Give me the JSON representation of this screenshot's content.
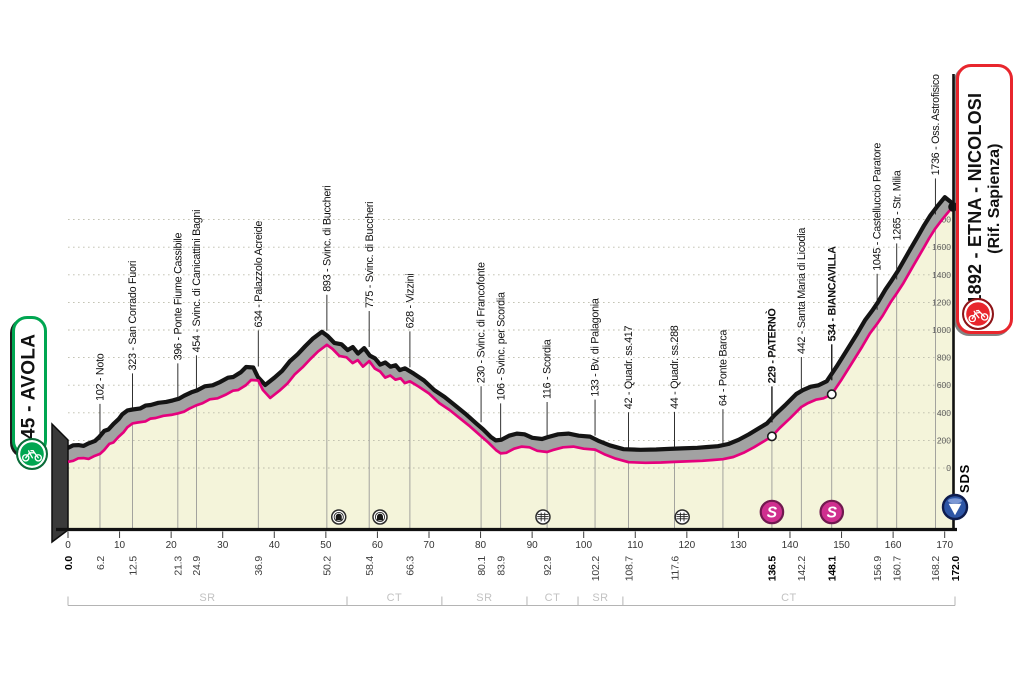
{
  "chart_data": {
    "type": "area",
    "x_unit": "km",
    "y_unit": "m",
    "xlim": [
      0,
      172
    ],
    "grid": true,
    "elevation_axis": {
      "min": 0,
      "max": 1800,
      "step": 200,
      "labels": [
        0,
        200,
        400,
        600,
        800,
        1000,
        1200,
        1400,
        1600,
        1800
      ]
    },
    "km_axis_ticks": [
      0,
      10,
      20,
      30,
      40,
      50,
      60,
      70,
      80,
      90,
      100,
      110,
      120,
      130,
      140,
      150,
      160,
      170
    ],
    "profile": [
      [
        0,
        45
      ],
      [
        1,
        52
      ],
      [
        2,
        70
      ],
      [
        3,
        72
      ],
      [
        4,
        66
      ],
      [
        5,
        85
      ],
      [
        6.2,
        102
      ],
      [
        7,
        130
      ],
      [
        8,
        175
      ],
      [
        8.8,
        185
      ],
      [
        9.8,
        225
      ],
      [
        10.8,
        260
      ],
      [
        11.5,
        295
      ],
      [
        12.5,
        323
      ],
      [
        13.5,
        330
      ],
      [
        15,
        338
      ],
      [
        16,
        358
      ],
      [
        17,
        362
      ],
      [
        18.5,
        378
      ],
      [
        20,
        385
      ],
      [
        21.3,
        396
      ],
      [
        22.5,
        408
      ],
      [
        23.5,
        430
      ],
      [
        24.9,
        454
      ],
      [
        26,
        468
      ],
      [
        27.5,
        498
      ],
      [
        29,
        505
      ],
      [
        30.5,
        530
      ],
      [
        32,
        560
      ],
      [
        33,
        565
      ],
      [
        34.5,
        600
      ],
      [
        35.5,
        638
      ],
      [
        36.9,
        634
      ],
      [
        37.8,
        565
      ],
      [
        39.2,
        507
      ],
      [
        41,
        560
      ],
      [
        42.5,
        610
      ],
      [
        44,
        680
      ],
      [
        45.5,
        730
      ],
      [
        47,
        790
      ],
      [
        48.5,
        845
      ],
      [
        50.2,
        893
      ],
      [
        51.3,
        862
      ],
      [
        52.6,
        812
      ],
      [
        54,
        802
      ],
      [
        55.2,
        760
      ],
      [
        56.2,
        782
      ],
      [
        57.2,
        735
      ],
      [
        58.4,
        775
      ],
      [
        59.5,
        720
      ],
      [
        60.5,
        700
      ],
      [
        61.5,
        655
      ],
      [
        62.5,
        670
      ],
      [
        63.5,
        640
      ],
      [
        64.5,
        650
      ],
      [
        65.3,
        615
      ],
      [
        66.3,
        628
      ],
      [
        68,
        590
      ],
      [
        70,
        540
      ],
      [
        72,
        470
      ],
      [
        74,
        420
      ],
      [
        76,
        360
      ],
      [
        78,
        300
      ],
      [
        80.1,
        230
      ],
      [
        81.5,
        185
      ],
      [
        83,
        130
      ],
      [
        83.9,
        106
      ],
      [
        85,
        110
      ],
      [
        86.5,
        140
      ],
      [
        88,
        155
      ],
      [
        89.5,
        150
      ],
      [
        91,
        125
      ],
      [
        92.9,
        116
      ],
      [
        94,
        130
      ],
      [
        96,
        150
      ],
      [
        98,
        155
      ],
      [
        100,
        140
      ],
      [
        102.2,
        133
      ],
      [
        104,
        100
      ],
      [
        106,
        70
      ],
      [
        108.7,
        42
      ],
      [
        112,
        38
      ],
      [
        115,
        40
      ],
      [
        117.6,
        44
      ],
      [
        120,
        48
      ],
      [
        123,
        52
      ],
      [
        125,
        58
      ],
      [
        127,
        64
      ],
      [
        129,
        80
      ],
      [
        131,
        110
      ],
      [
        133,
        150
      ],
      [
        135,
        195
      ],
      [
        136.5,
        229
      ],
      [
        138,
        290
      ],
      [
        140,
        360
      ],
      [
        142.2,
        442
      ],
      [
        143.5,
        470
      ],
      [
        145,
        495
      ],
      [
        146.5,
        505
      ],
      [
        148.1,
        534
      ],
      [
        150,
        640
      ],
      [
        152,
        760
      ],
      [
        154,
        880
      ],
      [
        155.5,
        975
      ],
      [
        156.9,
        1045
      ],
      [
        158,
        1105
      ],
      [
        159.5,
        1200
      ],
      [
        160.7,
        1265
      ],
      [
        162,
        1340
      ],
      [
        164,
        1470
      ],
      [
        166,
        1600
      ],
      [
        167,
        1665
      ],
      [
        168.2,
        1736
      ],
      [
        169.5,
        1800
      ],
      [
        171,
        1868
      ],
      [
        172,
        1892
      ]
    ],
    "waypoints": [
      {
        "km": 6.2,
        "elev": 102,
        "label": "102 - Noto",
        "km_label": "6.2",
        "bold": false
      },
      {
        "km": 12.5,
        "elev": 323,
        "label": "323 - San Corrado Fuori",
        "km_label": "12.5",
        "bold": false
      },
      {
        "km": 21.3,
        "elev": 396,
        "label": "396 - Ponte Fiume Cassibile",
        "km_label": "21.3",
        "bold": false
      },
      {
        "km": 24.9,
        "elev": 454,
        "label": "454 - Svinc. di Canicattini Bagni",
        "km_label": "24.9",
        "bold": false
      },
      {
        "km": 36.9,
        "elev": 634,
        "label": "634 - Palazzolo Acreide",
        "km_label": "36.9",
        "bold": false
      },
      {
        "km": 50.2,
        "elev": 893,
        "label": "893 - Svinc. di Buccheri",
        "km_label": "50.2",
        "bold": false
      },
      {
        "km": 58.4,
        "elev": 775,
        "label": "775 - Svinc. di Buccheri",
        "km_label": "58.4",
        "bold": false
      },
      {
        "km": 66.3,
        "elev": 628,
        "label": "628 - Vizzini",
        "km_label": "66.3",
        "bold": false
      },
      {
        "km": 80.1,
        "elev": 230,
        "label": "230 - Svinc. di Francofonte",
        "km_label": "80.1",
        "bold": false
      },
      {
        "km": 83.9,
        "elev": 106,
        "label": "106 - Svinc. per Scordia",
        "km_label": "83.9",
        "bold": false
      },
      {
        "km": 92.9,
        "elev": 116,
        "label": "116 - Scordia",
        "km_label": "92.9",
        "bold": false
      },
      {
        "km": 102.2,
        "elev": 133,
        "label": "133 - Bv. di Palagonia",
        "km_label": "102.2",
        "bold": false
      },
      {
        "km": 108.7,
        "elev": 42,
        "label": "42 - Quadr. ss.417",
        "km_label": "108.7",
        "bold": false
      },
      {
        "km": 117.6,
        "elev": 44,
        "label": "44 - Quadr. ss.288",
        "km_label": "117.6",
        "bold": false
      },
      {
        "km": 127,
        "elev": 64,
        "label": "64 - Ponte Barca",
        "km_label": "",
        "bold": false
      },
      {
        "km": 136.5,
        "elev": 229,
        "label": "229 - PATERNÒ",
        "km_label": "136.5",
        "bold": true
      },
      {
        "km": 142.2,
        "elev": 442,
        "label": "442 - Santa Maria di Licodia",
        "km_label": "142.2",
        "bold": false
      },
      {
        "km": 148.1,
        "elev": 534,
        "label": "534 - BIANCAVILLA",
        "km_label": "148.1",
        "bold": true
      },
      {
        "km": 156.9,
        "elev": 1045,
        "label": "1045 - Castelluccio Paratore",
        "km_label": "156.9",
        "bold": false
      },
      {
        "km": 160.7,
        "elev": 1265,
        "label": "1265 - Str. Milia",
        "km_label": "160.7",
        "bold": false
      },
      {
        "km": 168.2,
        "elev": 1736,
        "label": "1736 - Oss. Astrofisico",
        "km_label": "168.2",
        "bold": false
      }
    ],
    "start": {
      "km": 0,
      "elev": 45,
      "km_label": "0.0",
      "box": "45 - AVOLA"
    },
    "finish": {
      "km": 172,
      "elev": 1892,
      "km_label": "172.0",
      "box_line1": "1892 - ETNA - NICOLOSI",
      "box_line2": "(Rif. Sapienza)"
    },
    "sprints": [
      {
        "km": 136.5,
        "elev": 229
      },
      {
        "km": 148.1,
        "elev": 534
      }
    ],
    "sprint_symbol": "S",
    "tunnels": [
      {
        "km": 52.5
      },
      {
        "km": 60.5
      }
    ],
    "feed_zones": [
      {
        "km": 92.1
      },
      {
        "km": 119.1
      }
    ],
    "finish_area_label": "SDS",
    "road_segments": [
      {
        "label": "SR",
        "from": 0,
        "to": 54.1
      },
      {
        "label": "CT",
        "from": 54.1,
        "to": 72.5
      },
      {
        "label": "SR",
        "from": 72.5,
        "to": 89.0
      },
      {
        "label": "CT",
        "from": 89.0,
        "to": 98.9
      },
      {
        "label": "SR",
        "from": 98.9,
        "to": 107.6
      },
      {
        "label": "CT",
        "from": 107.6,
        "to": 172
      }
    ],
    "colors": {
      "profile_line": "#e5007d",
      "fill": "#f4f4da",
      "band": "#a2a2a2",
      "outline": "#141414",
      "sprint": "#cf2f8f",
      "start_green": "#00a651",
      "finish_red": "#e8262d",
      "marker_blue": "#2d55a5"
    }
  }
}
